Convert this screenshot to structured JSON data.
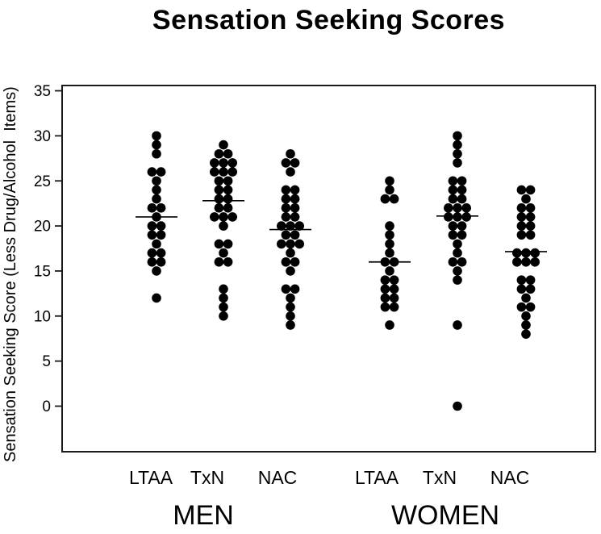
{
  "chart_data": {
    "type": "scatter",
    "subtype": "dot-strip-plot",
    "title": "Sensation Seeking Scores",
    "ylabel": "Sensation Seeking Score (Less Drug/Alcohol  Items)",
    "xlabel": "",
    "ylim": [
      0,
      35
    ],
    "yticks": [
      35,
      30,
      25,
      20,
      15,
      10,
      5,
      0
    ],
    "grid": false,
    "legend": "none",
    "marker": "filled-circle",
    "x_group_labels": [
      "MEN",
      "WOMEN"
    ],
    "groups": [
      {
        "gender": "MEN",
        "label": "LTAA",
        "mean_line": 21.0,
        "values": [
          30,
          29,
          28,
          26,
          26,
          25,
          24,
          23,
          22,
          22,
          21,
          20,
          20,
          19,
          19,
          18,
          17,
          17,
          16,
          16,
          15,
          12
        ]
      },
      {
        "gender": "MEN",
        "label": "TxN",
        "mean_line": 22.8,
        "values": [
          29,
          28,
          28,
          27,
          27,
          27,
          26,
          26,
          26,
          25,
          25,
          24,
          24,
          23,
          23,
          22,
          22,
          21,
          21,
          21,
          20,
          18,
          18,
          17,
          16,
          16,
          13,
          12,
          11,
          10
        ]
      },
      {
        "gender": "MEN",
        "label": "NAC",
        "mean_line": 19.6,
        "values": [
          28,
          27,
          27,
          26,
          24,
          24,
          23,
          23,
          22,
          22,
          21,
          21,
          20,
          20,
          20,
          19,
          19,
          18,
          18,
          18,
          17,
          16,
          16,
          15,
          13,
          13,
          12,
          11,
          10,
          9
        ]
      },
      {
        "gender": "WOMEN",
        "label": "LTAA",
        "mean_line": 16.0,
        "values": [
          25,
          24,
          23,
          23,
          20,
          19,
          18,
          17,
          16,
          16,
          15,
          14,
          14,
          13,
          13,
          12,
          12,
          11,
          11,
          9
        ]
      },
      {
        "gender": "WOMEN",
        "label": "TxN",
        "mean_line": 21.1,
        "values": [
          30,
          29,
          28,
          27,
          25,
          25,
          24,
          24,
          23,
          23,
          22,
          22,
          22,
          21,
          21,
          21,
          20,
          20,
          19,
          19,
          18,
          17,
          16,
          16,
          15,
          14,
          9,
          0
        ]
      },
      {
        "gender": "WOMEN",
        "label": "NAC",
        "mean_line": 17.15,
        "values": [
          24,
          24,
          23,
          22,
          22,
          21,
          21,
          20,
          20,
          19,
          19,
          17,
          17,
          17,
          16,
          16,
          16,
          14,
          14,
          13,
          13,
          12,
          11,
          11,
          10,
          9,
          8
        ]
      }
    ]
  },
  "colors": {
    "dot": "#000000",
    "axis": "#1a1a1a",
    "mean_line": "#000000",
    "background": "#ffffff",
    "text": "#000000"
  }
}
